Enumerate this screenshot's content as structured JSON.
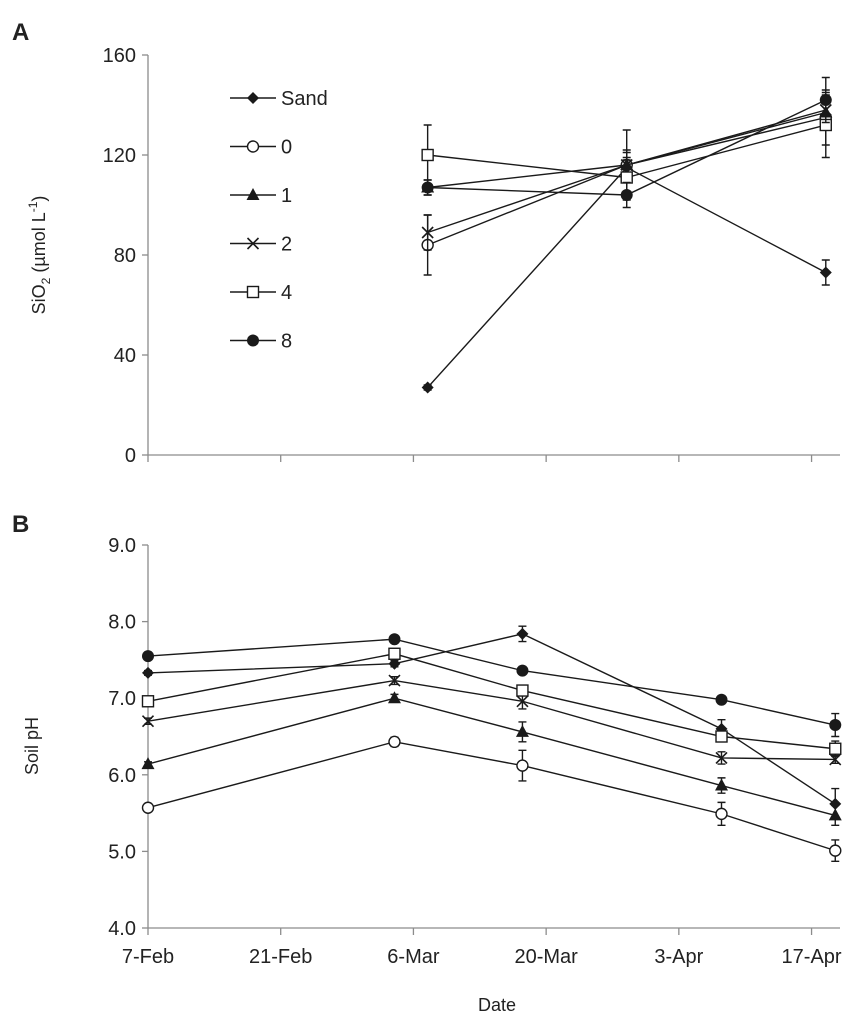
{
  "panel_labels": {
    "a": "A",
    "b": "B"
  },
  "chart_data": [
    {
      "type": "line",
      "panel": "A",
      "ylabel_main": "SiO",
      "ylabel_sub": "2",
      "ylabel_rest": " (µmol L",
      "ylabel_sup": "-1",
      "ylabel_end": ")",
      "ylim": [
        0,
        160
      ],
      "yticks": [
        {
          "value": 0,
          "label": "0"
        },
        {
          "value": 40,
          "label": "40"
        },
        {
          "value": 80,
          "label": "80"
        },
        {
          "value": 120,
          "label": "120"
        },
        {
          "value": 160,
          "label": "160"
        }
      ],
      "x_days": [
        0,
        14,
        28,
        42,
        56,
        70
      ],
      "x_tick_labels_shown": false,
      "x_range_days": [
        0,
        73
      ],
      "legend_position": "top-left",
      "series": [
        {
          "name": "Sand",
          "marker": "diamond",
          "points": [
            {
              "x": 29.5,
              "y": 27,
              "err": 1
            },
            {
              "x": 50.5,
              "y": 115,
              "err": 4
            },
            {
              "x": 71.5,
              "y": 73,
              "err": 5
            }
          ]
        },
        {
          "name": "0",
          "marker": "circle-open",
          "points": [
            {
              "x": 29.5,
              "y": 84,
              "err": 12
            },
            {
              "x": 50.5,
              "y": 116,
              "err": 14
            },
            {
              "x": 71.5,
              "y": 135,
              "err": 11
            }
          ]
        },
        {
          "name": "1",
          "marker": "triangle",
          "points": [
            {
              "x": 29.5,
              "y": 107,
              "err": 3
            },
            {
              "x": 50.5,
              "y": 116,
              "err": 6
            },
            {
              "x": 71.5,
              "y": 137,
              "err": 5
            }
          ]
        },
        {
          "name": "2",
          "marker": "x",
          "points": [
            {
              "x": 29.5,
              "y": 89,
              "err": 7
            },
            {
              "x": 50.5,
              "y": 116,
              "err": 5
            },
            {
              "x": 71.5,
              "y": 138,
              "err": 6
            }
          ]
        },
        {
          "name": "4",
          "marker": "square-open",
          "points": [
            {
              "x": 29.5,
              "y": 120,
              "err": 12
            },
            {
              "x": 50.5,
              "y": 111,
              "err": 7
            },
            {
              "x": 71.5,
              "y": 132,
              "err": 13
            }
          ]
        },
        {
          "name": "8",
          "marker": "circle",
          "points": [
            {
              "x": 29.5,
              "y": 107,
              "err": 3
            },
            {
              "x": 50.5,
              "y": 104,
              "err": 5
            },
            {
              "x": 71.5,
              "y": 142,
              "err": 9
            }
          ]
        }
      ]
    },
    {
      "type": "line",
      "panel": "B",
      "ylabel": "Soil pH",
      "xlabel": "Date",
      "ylim": [
        4.0,
        9.0
      ],
      "yticks": [
        {
          "value": 4.0,
          "label": "4.0"
        },
        {
          "value": 5.0,
          "label": "5.0"
        },
        {
          "value": 6.0,
          "label": "6.0"
        },
        {
          "value": 7.0,
          "label": "7.0"
        },
        {
          "value": 8.0,
          "label": "8.0"
        },
        {
          "value": 9.0,
          "label": "9.0"
        }
      ],
      "x_range_days": [
        0,
        73
      ],
      "xticks": [
        {
          "value": 0,
          "label": "7-Feb"
        },
        {
          "value": 14,
          "label": "21-Feb"
        },
        {
          "value": 28,
          "label": "6-Mar"
        },
        {
          "value": 42,
          "label": "20-Mar"
        },
        {
          "value": 56,
          "label": "3-Apr"
        },
        {
          "value": 70,
          "label": "17-Apr"
        }
      ],
      "series": [
        {
          "name": "Sand",
          "marker": "diamond",
          "points": [
            {
              "x": 0,
              "y": 7.33,
              "err": 0.03
            },
            {
              "x": 26,
              "y": 7.45,
              "err": 0.04
            },
            {
              "x": 39.5,
              "y": 7.84,
              "err": 0.1
            },
            {
              "x": 60.5,
              "y": 6.6,
              "err": 0.12
            },
            {
              "x": 72.5,
              "y": 5.62,
              "err": 0.2
            }
          ]
        },
        {
          "name": "0",
          "marker": "circle-open",
          "points": [
            {
              "x": 0,
              "y": 5.57,
              "err": 0.04
            },
            {
              "x": 26,
              "y": 6.43,
              "err": 0.06
            },
            {
              "x": 39.5,
              "y": 6.12,
              "err": 0.2
            },
            {
              "x": 60.5,
              "y": 5.49,
              "err": 0.15
            },
            {
              "x": 72.5,
              "y": 5.01,
              "err": 0.14
            }
          ]
        },
        {
          "name": "1",
          "marker": "triangle",
          "points": [
            {
              "x": 0,
              "y": 6.14,
              "err": 0.03
            },
            {
              "x": 26,
              "y": 7.0,
              "err": 0.05
            },
            {
              "x": 39.5,
              "y": 6.56,
              "err": 0.13
            },
            {
              "x": 60.5,
              "y": 5.86,
              "err": 0.1
            },
            {
              "x": 72.5,
              "y": 5.47,
              "err": 0.13
            }
          ]
        },
        {
          "name": "2",
          "marker": "x",
          "points": [
            {
              "x": 0,
              "y": 6.7,
              "err": 0.04
            },
            {
              "x": 26,
              "y": 7.23,
              "err": 0.05
            },
            {
              "x": 39.5,
              "y": 6.96,
              "err": 0.1
            },
            {
              "x": 60.5,
              "y": 6.22,
              "err": 0.08
            },
            {
              "x": 72.5,
              "y": 6.2,
              "err": 0.05
            }
          ]
        },
        {
          "name": "4",
          "marker": "square-open",
          "points": [
            {
              "x": 0,
              "y": 6.96,
              "err": 0.03
            },
            {
              "x": 26,
              "y": 7.58,
              "err": 0.05
            },
            {
              "x": 39.5,
              "y": 7.1,
              "err": 0.05
            },
            {
              "x": 60.5,
              "y": 6.5,
              "err": 0.06
            },
            {
              "x": 72.5,
              "y": 6.34,
              "err": 0.1
            }
          ]
        },
        {
          "name": "8",
          "marker": "circle",
          "points": [
            {
              "x": 0,
              "y": 7.55,
              "err": 0.02
            },
            {
              "x": 26,
              "y": 7.77,
              "err": 0.03
            },
            {
              "x": 39.5,
              "y": 7.36,
              "err": 0.04
            },
            {
              "x": 60.5,
              "y": 6.98,
              "err": 0.05
            },
            {
              "x": 72.5,
              "y": 6.65,
              "err": 0.15
            }
          ]
        }
      ]
    }
  ]
}
